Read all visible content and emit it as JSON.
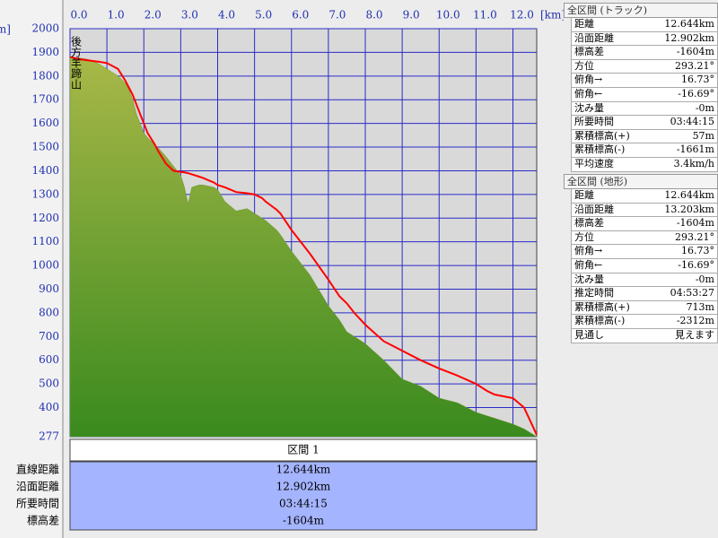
{
  "chart_data": {
    "type": "area",
    "annotation": "後方羊蹄山",
    "x_unit": "[km]",
    "y_unit": "[m]",
    "x": [
      0,
      0.3,
      0.5,
      0.8,
      1.0,
      1.3,
      1.5,
      1.6,
      1.7,
      1.8,
      1.9,
      2.0,
      2.1,
      2.3,
      2.4,
      2.6,
      2.8,
      3.0,
      3.1,
      3.2,
      3.3,
      3.5,
      3.6,
      3.9,
      4.0,
      4.2,
      4.5,
      4.8,
      5.0,
      5.2,
      5.3,
      5.6,
      5.7,
      6.0,
      6.5,
      7.0,
      7.3,
      7.5,
      7.7,
      8.0,
      8.5,
      9.0,
      9.5,
      10.0,
      10.5,
      11.0,
      11.3,
      11.5,
      12.0,
      12.3,
      12.644
    ],
    "series": [
      {
        "color": "#6a9a2a",
        "values": [
          1880,
          1875,
          1870,
          1850,
          1830,
          1800,
          1770,
          1740,
          1700,
          1640,
          1600,
          1560,
          1540,
          1510,
          1495,
          1460,
          1420,
          1380,
          1330,
          1260,
          1330,
          1340,
          1340,
          1330,
          1320,
          1270,
          1230,
          1240,
          1220,
          1200,
          1190,
          1150,
          1130,
          1060,
          960,
          830,
          770,
          720,
          700,
          670,
          600,
          520,
          490,
          440,
          420,
          380,
          365,
          355,
          330,
          310,
          277
        ]
      },
      {
        "color": "#ff0000",
        "values": [
          1880,
          1870,
          1866,
          1860,
          1855,
          1830,
          1780,
          1750,
          1720,
          1680,
          1640,
          1600,
          1560,
          1510,
          1480,
          1430,
          1400,
          1395,
          1393,
          1390,
          1385,
          1375,
          1370,
          1350,
          1340,
          1330,
          1310,
          1305,
          1300,
          1285,
          1270,
          1235,
          1220,
          1150,
          1050,
          940,
          870,
          840,
          800,
          750,
          680,
          640,
          600,
          565,
          535,
          500,
          470,
          455,
          440,
          400,
          285
        ]
      }
    ],
    "xlim": [
      0,
      12.644
    ],
    "ylim": [
      277,
      2000
    ],
    "xticks": [
      {
        "value": 0,
        "label": "0.0"
      },
      {
        "value": 1,
        "label": "1.0"
      },
      {
        "value": 2,
        "label": "2.0"
      },
      {
        "value": 3,
        "label": "3.0"
      },
      {
        "value": 4,
        "label": "4.0"
      },
      {
        "value": 5,
        "label": "5.0"
      },
      {
        "value": 6,
        "label": "6.0"
      },
      {
        "value": 7,
        "label": "7.0"
      },
      {
        "value": 8,
        "label": "8.0"
      },
      {
        "value": 9,
        "label": "9.0"
      },
      {
        "value": 10,
        "label": "10.0"
      },
      {
        "value": 11,
        "label": "11.0"
      },
      {
        "value": 12,
        "label": "12.0"
      }
    ],
    "yticks": [
      277,
      400,
      500,
      600,
      700,
      800,
      900,
      1000,
      1100,
      1200,
      1300,
      1400,
      1500,
      1600,
      1700,
      1800,
      1900,
      2000
    ],
    "grid": true
  },
  "section_table": {
    "header": "区間 1",
    "rows": [
      [
        "直線距離",
        "12.644km"
      ],
      [
        "沿面距離",
        "12.902km"
      ],
      [
        "所要時間",
        "03:44:15"
      ],
      [
        "標高差",
        "-1604m"
      ]
    ]
  },
  "track_panel": {
    "title": "全区間 (トラック)",
    "rows": [
      [
        "距離",
        "12.644km"
      ],
      [
        "沿面距離",
        "12.902km"
      ],
      [
        "標高差",
        "-1604m"
      ],
      [
        "方位",
        "293.21°"
      ],
      [
        "俯角→",
        "16.73°"
      ],
      [
        "俯角←",
        "-16.69°"
      ],
      [
        "沈み量",
        "-0m"
      ],
      [
        "所要時間",
        "03:44:15"
      ],
      [
        "累積標高(+)",
        "57m"
      ],
      [
        "累積標高(-)",
        "-1661m"
      ],
      [
        "平均速度",
        "3.4km/h"
      ]
    ]
  },
  "terrain_panel": {
    "title": "全区間 (地形)",
    "rows": [
      [
        "距離",
        "12.644km"
      ],
      [
        "沿面距離",
        "13.203km"
      ],
      [
        "標高差",
        "-1604m"
      ],
      [
        "方位",
        "293.21°"
      ],
      [
        "俯角→",
        "16.73°"
      ],
      [
        "俯角←",
        "-16.69°"
      ],
      [
        "沈み量",
        "-0m"
      ],
      [
        "推定時間",
        "04:53:27"
      ],
      [
        "累積標高(+)",
        "713m"
      ],
      [
        "累積標高(-)",
        "-2312m"
      ],
      [
        "見通し",
        "見えます"
      ]
    ]
  }
}
